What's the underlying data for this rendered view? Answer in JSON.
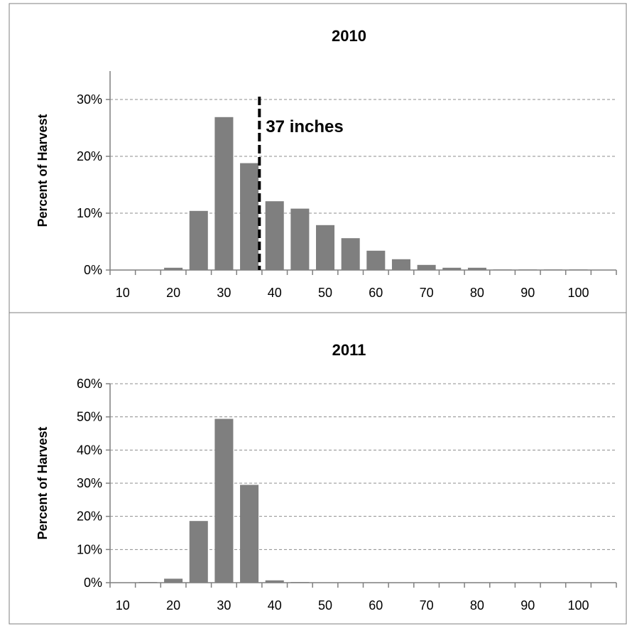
{
  "colors": {
    "bar": "#7f7f7f",
    "grid": "#8c8c8c",
    "axis": "#7f7f7f",
    "frame": "#7f7f7f",
    "marker": "#000000"
  },
  "chart_data": [
    {
      "type": "bar",
      "title": "2010",
      "ylabel": "Percent of Harvest",
      "xlabel": "",
      "x_tick_labels": [
        "10",
        "20",
        "30",
        "40",
        "50",
        "60",
        "70",
        "80",
        "90",
        "100"
      ],
      "y_tick_labels": [
        "0%",
        "10%",
        "20%",
        "30%"
      ],
      "ylim": [
        0,
        0.35
      ],
      "y_ticks": [
        0,
        0.1,
        0.2,
        0.3
      ],
      "xlim": [
        7.5,
        107.5
      ],
      "grid": true,
      "series": [
        {
          "x": [
            10,
            15,
            20,
            25,
            30,
            35,
            40,
            45,
            50,
            55,
            60,
            65,
            70,
            75,
            80,
            85,
            90,
            95,
            100
          ],
          "values": [
            0.0,
            0.0,
            0.004,
            0.104,
            0.269,
            0.188,
            0.121,
            0.108,
            0.079,
            0.056,
            0.034,
            0.019,
            0.009,
            0.004,
            0.004,
            0.001,
            0.001,
            0.001,
            0.001
          ]
        }
      ],
      "reference_line": {
        "x": 37,
        "label": "37 inches"
      }
    },
    {
      "type": "bar",
      "title": "2011",
      "ylabel": "Percent of Harvest",
      "xlabel": "",
      "x_tick_labels": [
        "10",
        "20",
        "30",
        "40",
        "50",
        "60",
        "70",
        "80",
        "90",
        "100"
      ],
      "y_tick_labels": [
        "0%",
        "10%",
        "20%",
        "30%",
        "40%",
        "50%",
        "60%"
      ],
      "ylim": [
        0,
        0.6
      ],
      "y_ticks": [
        0,
        0.1,
        0.2,
        0.3,
        0.4,
        0.5,
        0.6
      ],
      "xlim": [
        7.5,
        107.5
      ],
      "grid": true,
      "series": [
        {
          "x": [
            10,
            15,
            20,
            25,
            30,
            35,
            40,
            45,
            50,
            55,
            60,
            65,
            70,
            75,
            80,
            85,
            90,
            95,
            100
          ],
          "values": [
            0.0,
            0.002,
            0.012,
            0.186,
            0.494,
            0.295,
            0.007,
            0.002,
            0.001,
            0.001,
            0.0,
            0.0,
            0.0,
            0.0,
            0.0,
            0.0,
            0.0,
            0.0,
            0.0
          ]
        }
      ]
    }
  ]
}
